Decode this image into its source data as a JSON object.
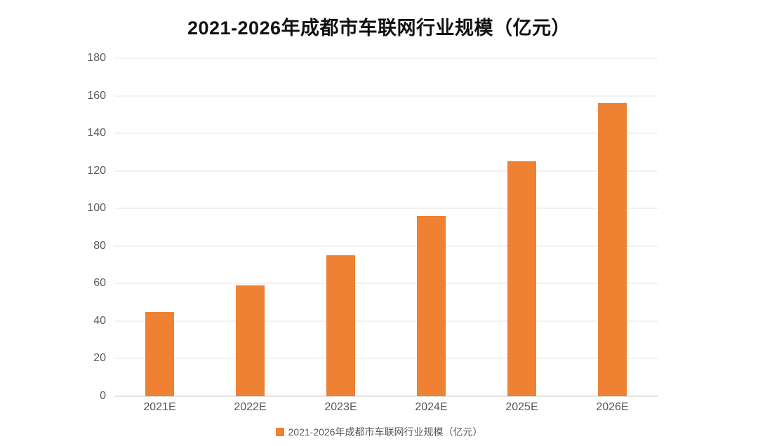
{
  "chart_data": {
    "type": "bar",
    "title": "2021-2026年成都市车联网行业规模（亿元）",
    "categories": [
      "2021E",
      "2022E",
      "2023E",
      "2024E",
      "2025E",
      "2026E"
    ],
    "values": [
      45,
      59,
      75,
      96,
      125,
      156
    ],
    "series_name": "2021-2026年成都市车联网行业规模（亿元）",
    "xlabel": "",
    "ylabel": "",
    "ylim": [
      0,
      180
    ],
    "yticks": [
      0,
      20,
      40,
      60,
      80,
      100,
      120,
      140,
      160,
      180
    ],
    "grid": true,
    "legend_position": "bottom",
    "colors": {
      "bar": "#EE8133",
      "gridline": "#E4E4E4",
      "baseline": "#C9C9C9",
      "axis_labels": "#595959",
      "title": "#111111",
      "background": "#FFFFFF"
    }
  },
  "legend": {
    "label": "2021-2026年成都市车联网行业规模（亿元）"
  }
}
